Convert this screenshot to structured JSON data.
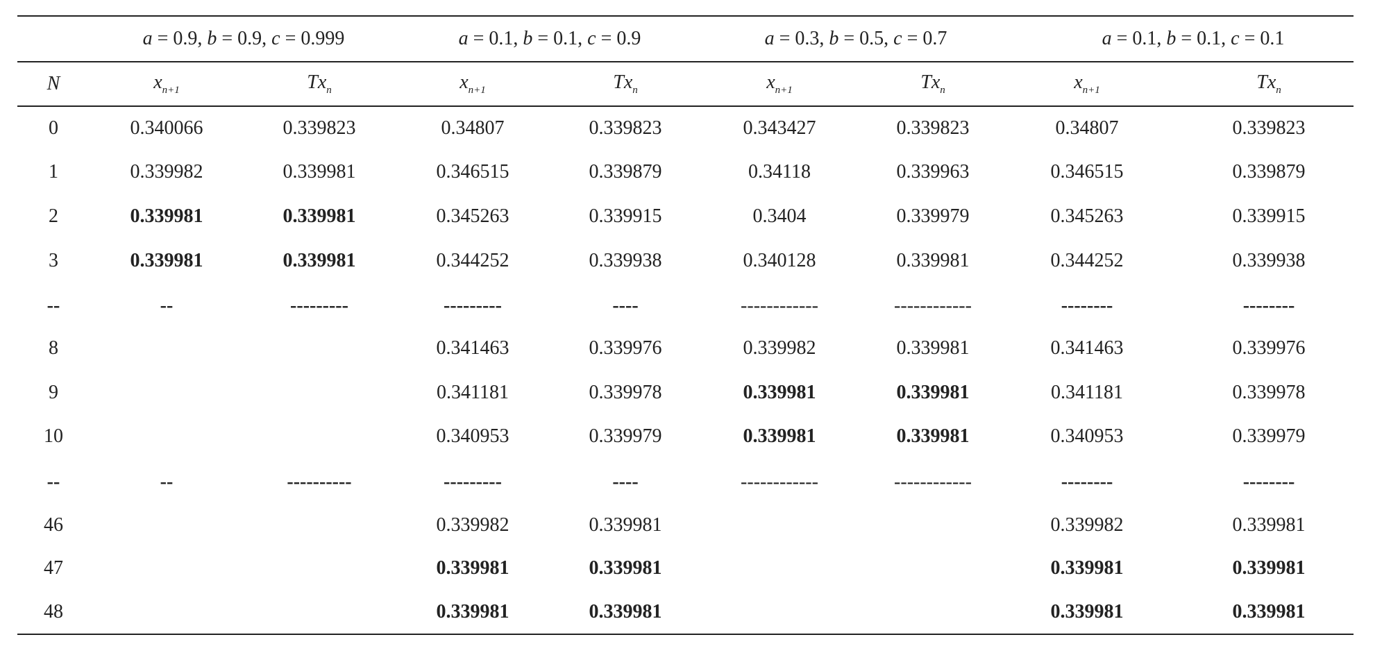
{
  "table": {
    "groups": [
      "a = 0.9, b = 0.9, c = 0.999",
      "a = 0.1, b = 0.1, c = 0.9",
      "a = 0.3, b = 0.5, c = 0.7",
      "a = 0.1, b = 0.1, c = 0.1"
    ],
    "columns": [
      {
        "base": "N"
      },
      {
        "base": "x",
        "sub": "n+1"
      },
      {
        "base": "Tx",
        "sub": "n"
      },
      {
        "base": "x",
        "sub": "n+1"
      },
      {
        "base": "Tx",
        "sub": "n"
      },
      {
        "base": "x",
        "sub": "n+1"
      },
      {
        "base": "Tx",
        "sub": "n"
      },
      {
        "base": "x",
        "sub": "n+1"
      },
      {
        "base": "Tx",
        "sub": "n"
      }
    ],
    "rows": [
      [
        "0",
        "0.340066",
        "0.339823",
        "0.34807",
        "0.339823",
        "0.343427",
        "0.339823",
        "0.34807",
        "0.339823"
      ],
      [
        "1",
        "0.339982",
        "0.339981",
        "0.346515",
        "0.339879",
        "0.34118",
        "0.339963",
        "0.346515",
        "0.339879"
      ],
      [
        "2",
        {
          "text": "0.339981",
          "bold": true
        },
        {
          "text": "0.339981",
          "bold": true
        },
        "0.345263",
        "0.339915",
        "0.3404",
        "0.339979",
        "0.345263",
        "0.339915"
      ],
      [
        "3",
        {
          "text": "0.339981",
          "bold": true
        },
        {
          "text": "0.339981",
          "bold": true
        },
        "0.344252",
        "0.339938",
        "0.340128",
        "0.339981",
        "0.344252",
        "0.339938"
      ],
      [
        {
          "text": "--",
          "bold": true
        },
        {
          "text": "--",
          "bold": true
        },
        {
          "text": "---------",
          "bold": true
        },
        {
          "text": "---------",
          "bold": true
        },
        {
          "text": "----",
          "bold": true
        },
        "------------",
        "------------",
        {
          "text": "--------",
          "bold": true
        },
        {
          "text": "--------",
          "bold": true
        }
      ],
      [
        "8",
        null,
        null,
        "0.341463",
        "0.339976",
        "0.339982",
        "0.339981",
        "0.341463",
        "0.339976"
      ],
      [
        "9",
        null,
        null,
        "0.341181",
        "0.339978",
        {
          "text": "0.339981",
          "bold": true
        },
        {
          "text": "0.339981",
          "bold": true
        },
        "0.341181",
        "0.339978"
      ],
      [
        "10",
        null,
        null,
        "0.340953",
        "0.339979",
        {
          "text": "0.339981",
          "bold": true
        },
        {
          "text": "0.339981",
          "bold": true
        },
        "0.340953",
        "0.339979"
      ],
      [
        {
          "text": "--",
          "bold": true
        },
        {
          "text": "--",
          "bold": true
        },
        {
          "text": "----------",
          "bold": true
        },
        {
          "text": "---------",
          "bold": true
        },
        {
          "text": "----",
          "bold": true
        },
        "------------",
        "------------",
        {
          "text": "--------",
          "bold": true
        },
        {
          "text": "--------",
          "bold": true
        }
      ],
      [
        "46",
        null,
        null,
        "0.339982",
        "0.339981",
        null,
        null,
        "0.339982",
        "0.339981"
      ],
      [
        "47",
        null,
        null,
        {
          "text": "0.339981",
          "bold": true
        },
        {
          "text": "0.339981",
          "bold": true
        },
        null,
        null,
        {
          "text": "0.339981",
          "bold": true
        },
        {
          "text": "0.339981",
          "bold": true
        }
      ],
      [
        "48",
        null,
        null,
        {
          "text": "0.339981",
          "bold": true
        },
        {
          "text": "0.339981",
          "bold": true
        },
        null,
        null,
        {
          "text": "0.339981",
          "bold": true
        },
        {
          "text": "0.339981",
          "bold": true
        }
      ]
    ]
  }
}
